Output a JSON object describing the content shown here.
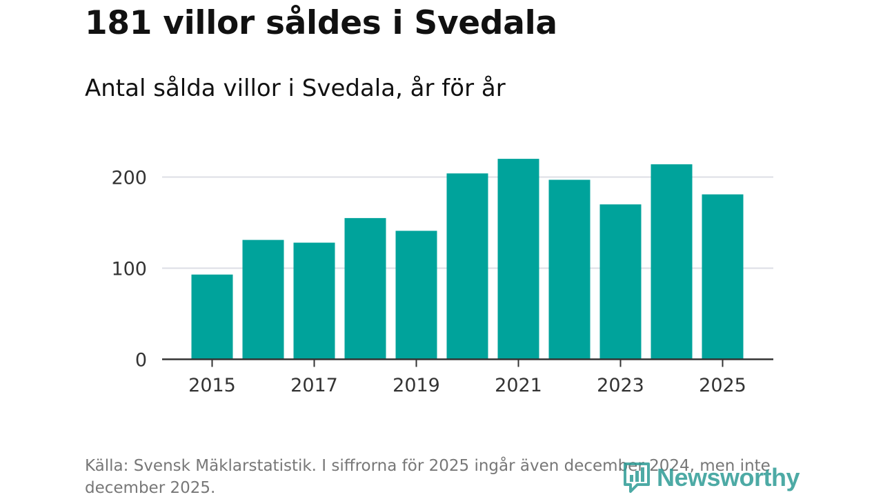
{
  "header": {
    "title": "181 villor såldes i Svedala",
    "subtitle": "Antal sålda villor i Svedala, år för år"
  },
  "chart_data": {
    "type": "bar",
    "title": "181 villor såldes i Svedala",
    "subtitle": "Antal sålda villor i Svedala, år för år",
    "xlabel": "",
    "ylabel": "",
    "categories": [
      "2015",
      "2016",
      "2017",
      "2018",
      "2019",
      "2020",
      "2021",
      "2022",
      "2023",
      "2024",
      "2025"
    ],
    "values": [
      93,
      131,
      128,
      155,
      141,
      204,
      220,
      197,
      170,
      214,
      181
    ],
    "ylim": [
      0,
      230
    ],
    "yticks": [
      0,
      100,
      200
    ],
    "xtick_labels": [
      "2015",
      "2017",
      "2019",
      "2021",
      "2023",
      "2025"
    ],
    "grid": true,
    "bar_color": "#00a39b",
    "gridline_color": "#dcdee5",
    "axis_color": "#333333"
  },
  "footer": {
    "source": "Källa: Svensk Mäklarstatistik. I siffrorna för 2025 ingår även december 2024, men inte december 2025.",
    "brand": "Newsworthy",
    "brand_icon": "newsworthy-logo-icon",
    "brand_color": "#2e9c96"
  }
}
